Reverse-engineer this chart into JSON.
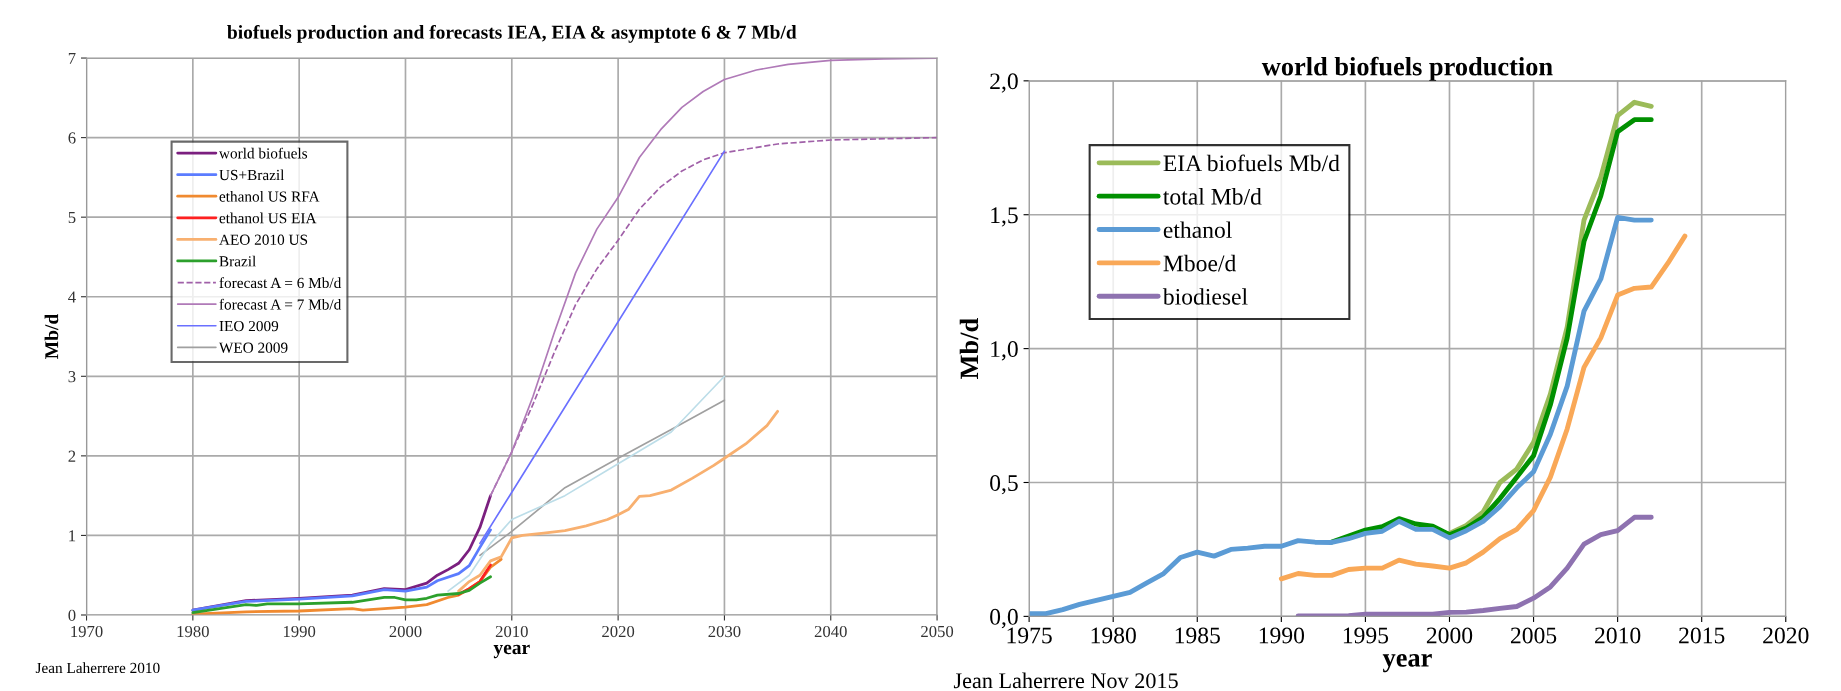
{
  "chart_data": [
    {
      "type": "line",
      "title": "biofuels production and forecasts IEA, EIA & asymptote 6 & 7 Mb/d",
      "xlabel": "year",
      "ylabel": "Mb/d",
      "xlim": [
        1970,
        2050
      ],
      "xticks": [
        1970,
        1980,
        1990,
        2000,
        2010,
        2020,
        2030,
        2040,
        2050
      ],
      "ylim": [
        0,
        7
      ],
      "yticks": [
        0,
        1,
        2,
        3,
        4,
        5,
        6,
        7
      ],
      "grid": true,
      "legend": "top left",
      "annotations": [
        "Jean Laherrere 2010"
      ],
      "series": [
        {
          "name": "world biofuels",
          "color": "#7b1f7f",
          "x": [
            1980,
            1985,
            1990,
            1995,
            1998,
            2000,
            2002,
            2003,
            2004,
            2005,
            2006,
            2007,
            2008
          ],
          "values": [
            0.06,
            0.18,
            0.21,
            0.25,
            0.33,
            0.32,
            0.4,
            0.5,
            0.57,
            0.65,
            0.82,
            1.1,
            1.5
          ]
        },
        {
          "name": "US+Brazil",
          "color": "#5b7cff",
          "x": [
            1980,
            1985,
            1990,
            1995,
            1998,
            2000,
            2002,
            2003,
            2005,
            2006,
            2007,
            2008
          ],
          "values": [
            0.06,
            0.17,
            0.2,
            0.24,
            0.32,
            0.3,
            0.35,
            0.43,
            0.52,
            0.62,
            0.85,
            1.07
          ]
        },
        {
          "name": "ethanol US RFA",
          "color": "#f08a30",
          "x": [
            1980,
            1985,
            1990,
            1995,
            1996,
            2000,
            2002,
            2004,
            2005,
            2006,
            2007,
            2008,
            2009
          ],
          "values": [
            0.01,
            0.04,
            0.05,
            0.08,
            0.06,
            0.1,
            0.13,
            0.22,
            0.25,
            0.33,
            0.42,
            0.6,
            0.7
          ]
        },
        {
          "name": "ethanol US EIA",
          "color": "#ff2020",
          "x": [
            2005,
            2006,
            2007,
            2008
          ],
          "values": [
            0.26,
            0.33,
            0.42,
            0.63
          ]
        },
        {
          "name": "AEO 2010 US",
          "color": "#f8b070",
          "x": [
            2005,
            2006,
            2007,
            2008,
            2009,
            2010,
            2011,
            2013,
            2015,
            2017,
            2019,
            2020,
            2021,
            2022,
            2023,
            2025,
            2027,
            2029,
            2030,
            2032,
            2034,
            2035
          ],
          "values": [
            0.3,
            0.42,
            0.5,
            0.68,
            0.73,
            0.97,
            1.0,
            1.03,
            1.06,
            1.12,
            1.2,
            1.26,
            1.33,
            1.49,
            1.5,
            1.57,
            1.72,
            1.88,
            1.97,
            2.15,
            2.38,
            2.56
          ]
        },
        {
          "name": "Brazil",
          "color": "#2ca02c",
          "x": [
            1980,
            1985,
            1986,
            1987,
            1990,
            1995,
            1998,
            1999,
            2000,
            2001,
            2002,
            2003,
            2005,
            2006,
            2007,
            2008
          ],
          "values": [
            0.03,
            0.13,
            0.12,
            0.14,
            0.14,
            0.16,
            0.22,
            0.22,
            0.19,
            0.19,
            0.21,
            0.25,
            0.27,
            0.31,
            0.4,
            0.48
          ]
        },
        {
          "name": "forecast A = 6 Mb/d",
          "color": "#a060a8",
          "line_style": "dashed",
          "x": [
            2008,
            2010,
            2012,
            2014,
            2016,
            2018,
            2020,
            2022,
            2024,
            2026,
            2028,
            2030,
            2035,
            2040,
            2050
          ],
          "values": [
            1.5,
            2.05,
            2.65,
            3.3,
            3.9,
            4.35,
            4.71,
            5.1,
            5.38,
            5.58,
            5.72,
            5.81,
            5.92,
            5.97,
            6.0
          ]
        },
        {
          "name": "forecast A = 7 Mb/d",
          "color": "#b07ab8",
          "x": [
            2008,
            2010,
            2012,
            2014,
            2016,
            2018,
            2020,
            2022,
            2024,
            2026,
            2028,
            2030,
            2033,
            2036,
            2040,
            2045,
            2050
          ],
          "values": [
            1.5,
            2.05,
            2.75,
            3.55,
            4.3,
            4.85,
            5.25,
            5.75,
            6.1,
            6.38,
            6.58,
            6.73,
            6.85,
            6.92,
            6.97,
            6.99,
            7.0
          ]
        },
        {
          "name": "IEO 2009",
          "color": "#6a70ff",
          "x": [
            2007,
            2030
          ],
          "values": [
            0.9,
            5.83
          ]
        },
        {
          "name": "WEO 2009",
          "color": "#a0a0a0",
          "x": [
            2007,
            2010,
            2015,
            2020,
            2025,
            2030
          ],
          "values": [
            0.75,
            1.05,
            1.6,
            1.97,
            2.33,
            2.7
          ]
        },
        {
          "color": "#bcdde8",
          "x": [
            2004,
            2006,
            2008,
            2010,
            2015,
            2020,
            2025,
            2030
          ],
          "values": [
            0.3,
            0.5,
            0.9,
            1.2,
            1.5,
            1.9,
            2.3,
            3.0
          ]
        }
      ]
    },
    {
      "type": "line",
      "title": "world biofuels production",
      "xlabel": "year",
      "ylabel": "Mb/d",
      "xlim": [
        1975,
        2020
      ],
      "xticks": [
        1975,
        1980,
        1985,
        1990,
        1995,
        2000,
        2005,
        2010,
        2015,
        2020
      ],
      "ylim": [
        0,
        2
      ],
      "yticks": [
        {
          "value": 0,
          "label": "0,0"
        },
        {
          "value": 0.5,
          "label": "0,5"
        },
        {
          "value": 1,
          "label": "1,0"
        },
        {
          "value": 1.5,
          "label": "1,5"
        },
        {
          "value": 2,
          "label": "2,0"
        }
      ],
      "grid": true,
      "legend": "top left",
      "annotations": [
        "Jean Laherrere Nov 2015"
      ],
      "series": [
        {
          "name": "EIA biofuels Mb/d",
          "color": "#9bbb59",
          "x": [
            2000,
            2001,
            2002,
            2003,
            2004,
            2005,
            2006,
            2007,
            2008,
            2009,
            2010,
            2011,
            2012
          ],
          "values": [
            0.31,
            0.34,
            0.39,
            0.5,
            0.55,
            0.65,
            0.83,
            1.08,
            1.48,
            1.64,
            1.87,
            1.92,
            1.905
          ]
        },
        {
          "name": "total Mb/d",
          "color": "#009000",
          "x": [
            1993,
            1994,
            1995,
            1996,
            1997,
            1998,
            1999,
            2000,
            2001,
            2002,
            2003,
            2004,
            2005,
            2006,
            2007,
            2008,
            2009,
            2010,
            2011,
            2012
          ],
          "values": [
            0.278,
            0.3,
            0.322,
            0.335,
            0.365,
            0.345,
            0.337,
            0.305,
            0.33,
            0.37,
            0.44,
            0.52,
            0.6,
            0.79,
            1.04,
            1.4,
            1.57,
            1.81,
            1.855,
            1.855
          ]
        },
        {
          "name": "ethanol",
          "color": "#5b9bd5",
          "x": [
            1975,
            1976,
            1977,
            1978,
            1979,
            1980,
            1981,
            1982,
            1983,
            1984,
            1985,
            1986,
            1987,
            1988,
            1989,
            1990,
            1991,
            1992,
            1993,
            1994,
            1995,
            1996,
            1997,
            1998,
            1999,
            2000,
            2001,
            2002,
            2003,
            2004,
            2005,
            2006,
            2007,
            2008,
            2009,
            2010,
            2011,
            2012
          ],
          "values": [
            0.01,
            0.01,
            0.025,
            0.045,
            0.06,
            0.075,
            0.09,
            0.125,
            0.16,
            0.22,
            0.24,
            0.225,
            0.25,
            0.255,
            0.262,
            0.262,
            0.283,
            0.277,
            0.276,
            0.29,
            0.31,
            0.318,
            0.355,
            0.325,
            0.325,
            0.293,
            0.32,
            0.355,
            0.41,
            0.48,
            0.54,
            0.68,
            0.86,
            1.14,
            1.26,
            1.49,
            1.48,
            1.48
          ]
        },
        {
          "name": "Mboe/d",
          "color": "#f9a857",
          "x": [
            1990,
            1991,
            1992,
            1993,
            1994,
            1995,
            1996,
            1997,
            1998,
            1999,
            2000,
            2001,
            2002,
            2003,
            2004,
            2005,
            2006,
            2007,
            2008,
            2009,
            2010,
            2011,
            2012,
            2013,
            2014
          ],
          "values": [
            0.14,
            0.16,
            0.153,
            0.153,
            0.175,
            0.18,
            0.18,
            0.21,
            0.195,
            0.188,
            0.18,
            0.2,
            0.24,
            0.29,
            0.325,
            0.395,
            0.52,
            0.7,
            0.93,
            1.04,
            1.2,
            1.225,
            1.23,
            1.32,
            1.42
          ]
        },
        {
          "name": "biodiesel",
          "color": "#8e72b0",
          "x": [
            1991,
            1994,
            1995,
            1999,
            2000,
            2001,
            2002,
            2003,
            2004,
            2005,
            2006,
            2007,
            2008,
            2009,
            2010,
            2011,
            2012
          ],
          "values": [
            0.002,
            0.003,
            0.008,
            0.008,
            0.015,
            0.016,
            0.022,
            0.03,
            0.037,
            0.068,
            0.11,
            0.18,
            0.27,
            0.305,
            0.32,
            0.37,
            0.37
          ]
        }
      ]
    }
  ]
}
